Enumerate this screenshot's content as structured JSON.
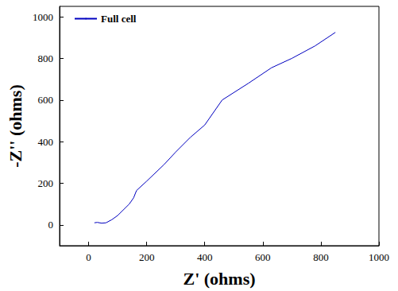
{
  "chart_data": {
    "type": "line",
    "x_label": "Z' (ohms)",
    "y_label": "-Z'' (ohms)",
    "xlim": [
      -100,
      1000
    ],
    "ylim": [
      -100,
      1050
    ],
    "xticks": [
      0,
      200,
      400,
      600,
      800,
      1000
    ],
    "yticks": [
      0,
      200,
      400,
      600,
      800,
      1000
    ],
    "grid": false,
    "legend": "upper left",
    "series": [
      {
        "name": "Full cell",
        "color": "#0000c0",
        "x": [
          20,
          30,
          45,
          60,
          80,
          100,
          140,
          155,
          165,
          200,
          260,
          300,
          350,
          400,
          460,
          550,
          630,
          700,
          780,
          850
        ],
        "values": [
          10,
          12,
          8,
          10,
          25,
          45,
          100,
          130,
          165,
          210,
          290,
          350,
          420,
          480,
          600,
          680,
          755,
          800,
          860,
          925
        ]
      }
    ]
  }
}
